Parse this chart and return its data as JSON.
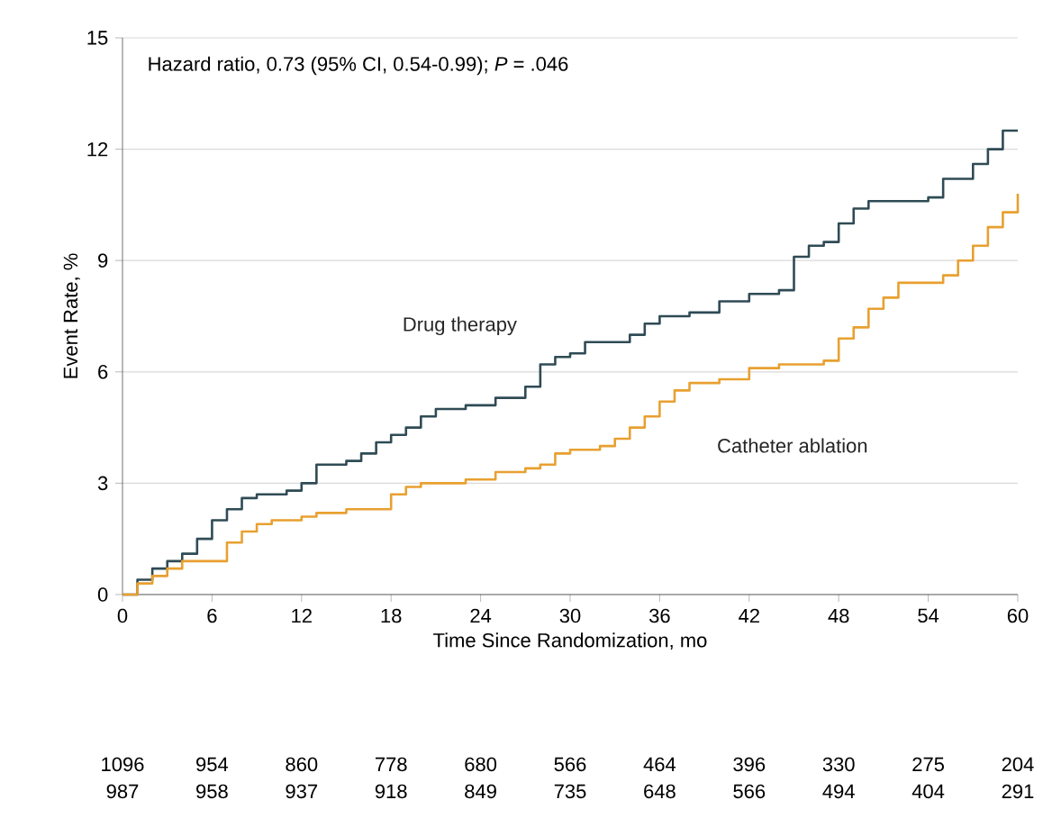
{
  "chart_data": {
    "type": "step",
    "xlabel": "Time Since Randomization, mo",
    "ylabel": "Event Rate, %",
    "xlim": [
      0,
      60
    ],
    "xticks": [
      0,
      6,
      12,
      18,
      24,
      30,
      36,
      42,
      48,
      54,
      60
    ],
    "ylim": [
      0,
      15
    ],
    "yticks": [
      0,
      3,
      6,
      9,
      12,
      15
    ],
    "grid": "y",
    "legend": false,
    "series": [
      {
        "name": "Drug therapy",
        "color": "#2f4b55",
        "x": [
          0,
          1,
          2,
          3,
          4,
          5,
          6,
          7,
          8,
          9,
          11,
          12,
          13,
          15,
          16,
          17,
          18,
          19,
          20,
          21,
          23,
          25,
          27,
          28,
          29,
          30,
          31,
          34,
          35,
          36,
          38,
          40,
          42,
          44,
          45,
          46,
          47,
          48,
          49,
          50,
          54,
          55,
          57,
          58,
          59,
          60
        ],
        "values": [
          0,
          0.4,
          0.7,
          0.9,
          1.1,
          1.5,
          2.0,
          2.3,
          2.6,
          2.7,
          2.8,
          3.0,
          3.5,
          3.6,
          3.8,
          4.1,
          4.3,
          4.5,
          4.8,
          5.0,
          5.1,
          5.3,
          5.6,
          6.2,
          6.4,
          6.5,
          6.8,
          7.0,
          7.3,
          7.5,
          7.6,
          7.9,
          8.1,
          8.2,
          9.1,
          9.4,
          9.5,
          10.0,
          10.4,
          10.6,
          10.7,
          11.2,
          11.6,
          12.0,
          12.5,
          12.5
        ]
      },
      {
        "name": "Catheter ablation",
        "color": "#e8a030",
        "x": [
          0,
          1,
          2,
          3,
          4,
          6,
          7,
          8,
          9,
          10,
          12,
          13,
          15,
          17,
          18,
          19,
          20,
          22,
          23,
          25,
          27,
          28,
          29,
          30,
          32,
          33,
          34,
          35,
          36,
          37,
          38,
          40,
          42,
          44,
          47,
          48,
          49,
          50,
          51,
          52,
          55,
          56,
          57,
          58,
          59,
          60
        ],
        "values": [
          0,
          0.3,
          0.5,
          0.7,
          0.9,
          0.9,
          1.4,
          1.7,
          1.9,
          2.0,
          2.1,
          2.2,
          2.3,
          2.3,
          2.7,
          2.9,
          3.0,
          3.0,
          3.1,
          3.3,
          3.4,
          3.5,
          3.8,
          3.9,
          4.0,
          4.2,
          4.5,
          4.8,
          5.2,
          5.5,
          5.7,
          5.8,
          6.1,
          6.2,
          6.3,
          6.9,
          7.2,
          7.7,
          8.0,
          8.4,
          8.6,
          9.0,
          9.4,
          9.9,
          10.3,
          10.8
        ]
      }
    ],
    "annotations": [
      "Hazard ratio, 0.73 (95% CI, 0.54-0.99); *P* = .046",
      "1096",
      "954",
      "860",
      "778",
      "680",
      "566",
      "464",
      "396",
      "330",
      "275",
      "204",
      "987",
      "958",
      "937",
      "918",
      "849",
      "735",
      "648",
      "566",
      "494",
      "404",
      "291"
    ]
  }
}
